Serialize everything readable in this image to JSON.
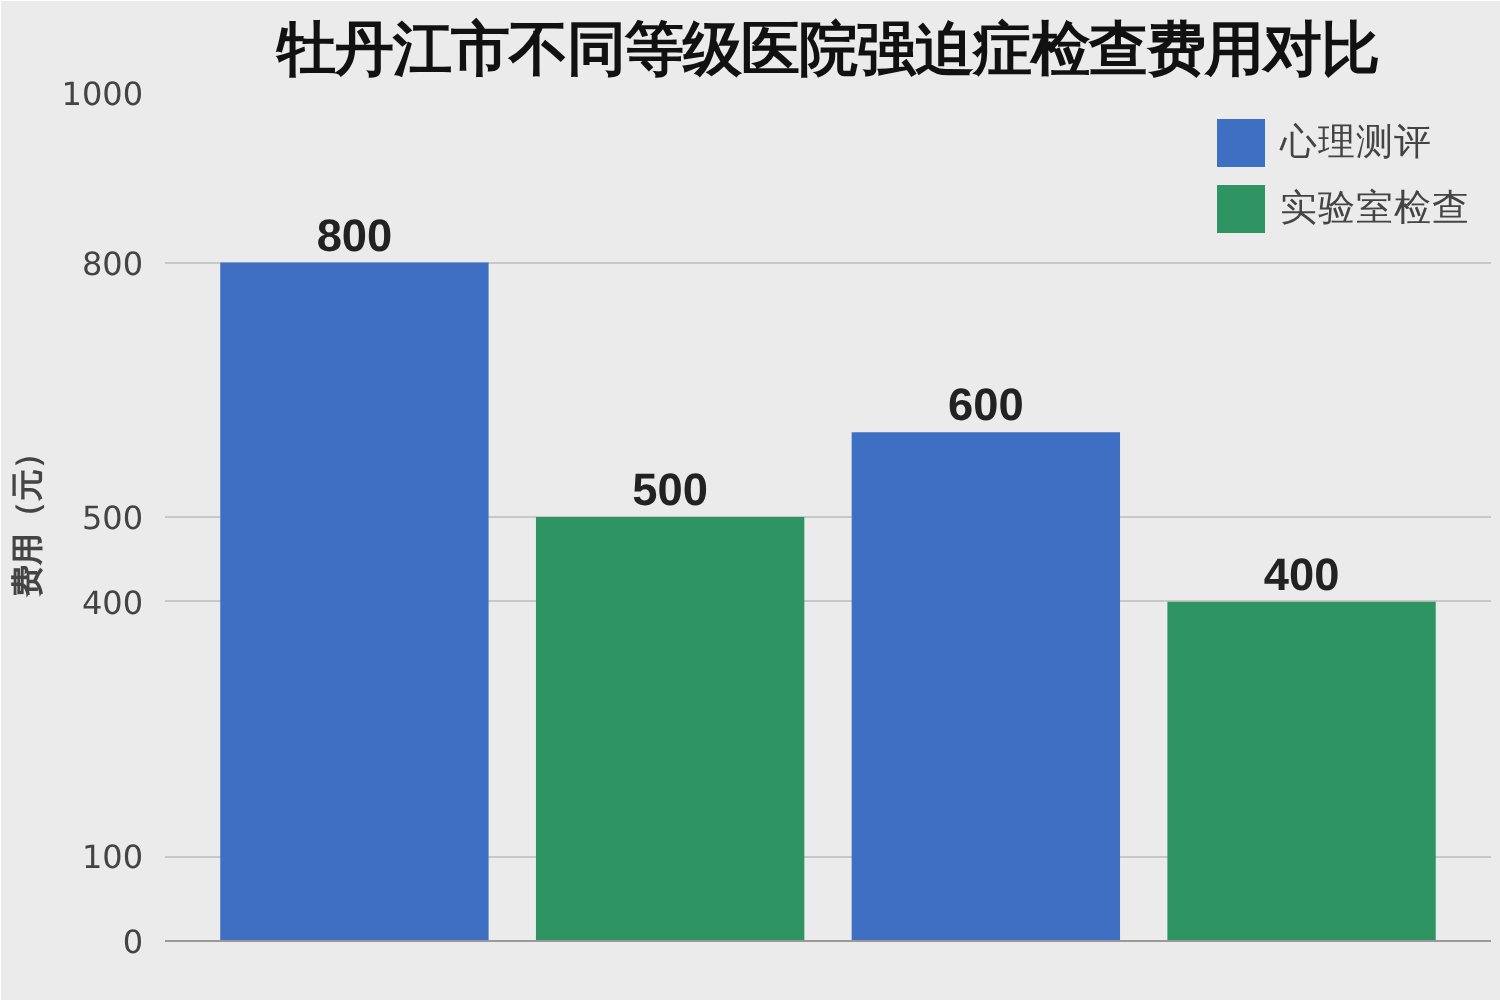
{
  "chart_data": {
    "type": "bar",
    "title": "牡丹江市不同等级医院强迫症检查费用对比",
    "ylabel": "费用（元）",
    "categories": [
      null,
      null,
      null,
      null
    ],
    "series": [
      {
        "name": "心理测评",
        "color": "#3f6fc2",
        "values": [
          800,
          null,
          600,
          null
        ]
      },
      {
        "name": "实验室检查",
        "color": "#2e9462",
        "values": [
          null,
          500,
          null,
          400
        ]
      }
    ],
    "ylim": [
      0,
      1000
    ],
    "yticks": [
      0,
      100,
      400,
      500,
      800,
      1000
    ],
    "grid": "y",
    "legend": "top right",
    "data_labels": true
  }
}
